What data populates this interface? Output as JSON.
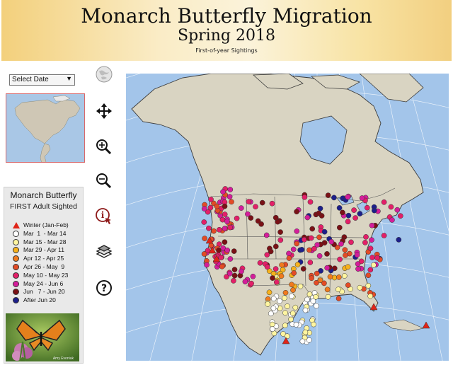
{
  "header": {
    "title": "Monarch Butterfly Migration",
    "subtitle": "Spring 2018",
    "caption": "First-of-year Sightings"
  },
  "controls": {
    "date_select_label": "Select Date"
  },
  "toolbar": {
    "items": [
      "globe-icon",
      "pan-icon",
      "zoom-in-icon",
      "zoom-out-icon",
      "info-icon",
      "layers-icon",
      "help-icon"
    ]
  },
  "legend": {
    "title": "Monarch Butterfly",
    "subtitle": "FIRST Adult Sighted",
    "items": [
      {
        "label": "Winter (Jan-Feb)",
        "color": "#e02418",
        "shape": "triangle"
      },
      {
        "label": "Mar  1  - Mar 14",
        "color": "#ffffff",
        "shape": "circle"
      },
      {
        "label": "Mar 15 - Mar 28",
        "color": "#fff5a0",
        "shape": "circle"
      },
      {
        "label": "Mar 29 - Apr 11",
        "color": "#f7b21c",
        "shape": "circle"
      },
      {
        "label": "Apr 12 - Apr 25",
        "color": "#f07a1e",
        "shape": "circle"
      },
      {
        "label": "Apr 26 - May  9",
        "color": "#e34b26",
        "shape": "circle"
      },
      {
        "label": "May 10 - May 23",
        "color": "#e31f68",
        "shape": "circle"
      },
      {
        "label": "May 24 - Jun 6",
        "color": "#d41d9a",
        "shape": "circle"
      },
      {
        "label": "Jun   7 - Jun 20",
        "color": "#7a1116",
        "shape": "circle"
      },
      {
        "label": "After Jun 20",
        "color": "#1d1f8a",
        "shape": "circle"
      }
    ]
  },
  "photo": {
    "credit": "Amy Evoniuk"
  },
  "colors": {
    "ocean": "#a3c5ea",
    "land": "#d9d4c2",
    "graticule": "#ffffff"
  }
}
